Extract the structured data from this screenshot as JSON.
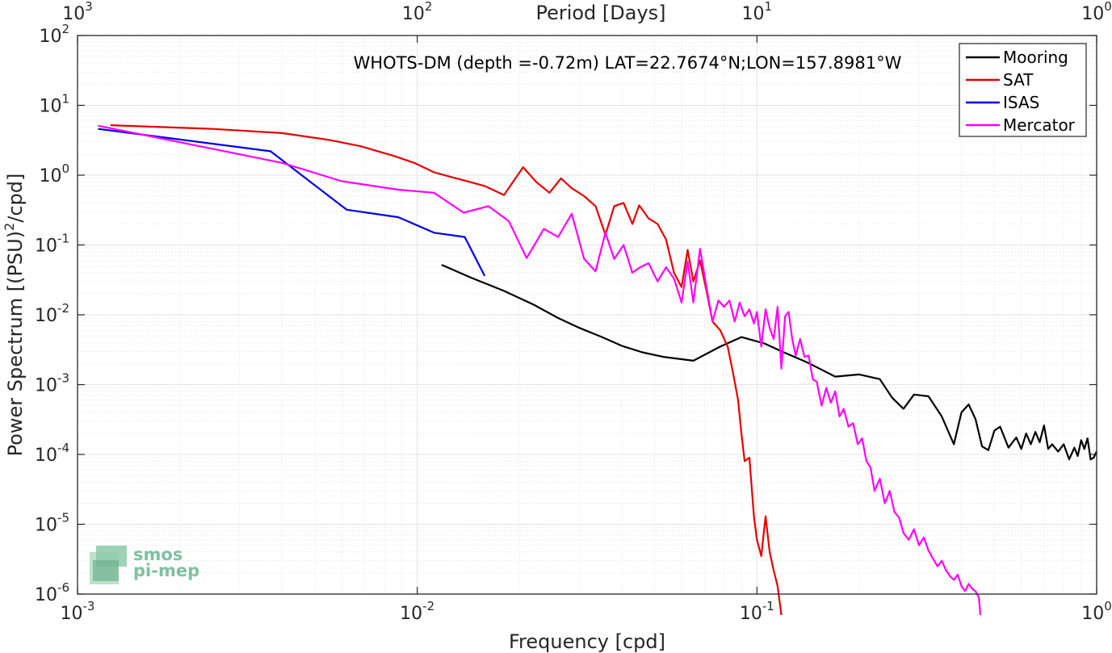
{
  "chart_data": {
    "type": "line",
    "title": "WHOTS-DM (depth =-0.72m) LAT=22.7674°N;LON=157.8981°W",
    "xlabel": "Frequency [cpd]",
    "ylabel": "Power Spectrum [(PSU)",
    "ylabel_sup": "2",
    "ylabel_tail": "/cpd]",
    "x2label": "Period [Days]",
    "x_scale": "log",
    "y_scale": "log",
    "xlim": [
      0.001,
      1
    ],
    "ylim": [
      1e-06,
      100
    ],
    "grid": true,
    "legend_position": "top-right",
    "x_ticks": [
      {
        "value": 0.001,
        "base": "10",
        "exp": "-3"
      },
      {
        "value": 0.01,
        "base": "10",
        "exp": "-2"
      },
      {
        "value": 0.1,
        "base": "10",
        "exp": "-1"
      },
      {
        "value": 1,
        "base": "10",
        "exp": "0"
      }
    ],
    "x2_ticks": [
      {
        "value": 0.001,
        "base": "10",
        "exp": "3"
      },
      {
        "value": 0.01,
        "base": "10",
        "exp": "2"
      },
      {
        "value": 0.1,
        "base": "10",
        "exp": "1"
      },
      {
        "value": 1,
        "base": "10",
        "exp": "0"
      }
    ],
    "y_ticks": [
      {
        "value": 1e-06,
        "base": "10",
        "exp": "-6"
      },
      {
        "value": 1e-05,
        "base": "10",
        "exp": "-5"
      },
      {
        "value": 0.0001,
        "base": "10",
        "exp": "-4"
      },
      {
        "value": 0.001,
        "base": "10",
        "exp": "-3"
      },
      {
        "value": 0.01,
        "base": "10",
        "exp": "-2"
      },
      {
        "value": 0.1,
        "base": "10",
        "exp": "-1"
      },
      {
        "value": 1,
        "base": "10",
        "exp": "0"
      },
      {
        "value": 10,
        "base": "10",
        "exp": "1"
      },
      {
        "value": 100,
        "base": "10",
        "exp": "2"
      }
    ],
    "series": [
      {
        "name": "Mooring",
        "color": "#000000",
        "x": [
          0.0118,
          0.0144,
          0.018,
          0.022,
          0.026,
          0.03,
          0.035,
          0.04,
          0.046,
          0.053,
          0.065,
          0.078,
          0.09,
          0.105,
          0.12,
          0.14,
          0.17,
          0.2,
          0.23,
          0.25,
          0.27,
          0.29,
          0.32,
          0.35,
          0.38,
          0.4,
          0.42,
          0.44,
          0.46,
          0.48,
          0.5,
          0.52,
          0.55,
          0.58,
          0.6,
          0.62,
          0.64,
          0.66,
          0.68,
          0.7,
          0.72,
          0.74,
          0.77,
          0.8,
          0.83,
          0.86,
          0.88,
          0.9,
          0.92,
          0.94,
          0.96,
          0.98,
          1.0
        ],
        "y": [
          0.052,
          0.034,
          0.022,
          0.014,
          0.009,
          0.0065,
          0.0048,
          0.0036,
          0.0029,
          0.0025,
          0.0022,
          0.0035,
          0.0048,
          0.0039,
          0.0029,
          0.0021,
          0.0013,
          0.0014,
          0.0012,
          0.00065,
          0.00045,
          0.00072,
          0.00068,
          0.00035,
          0.00014,
          0.0004,
          0.00052,
          0.00032,
          0.00013,
          0.000115,
          0.00022,
          0.00025,
          0.000125,
          0.000175,
          0.00012,
          0.0002,
          0.00014,
          0.00021,
          0.00015,
          0.00026,
          0.00012,
          0.00014,
          0.00011,
          0.00014,
          8.5e-05,
          0.000125,
          9.5e-05,
          0.00016,
          0.00012,
          0.00017,
          8.5e-05,
          9e-05,
          0.00011
        ]
      },
      {
        "name": "SAT",
        "color": "#e60000",
        "x": [
          0.00125,
          0.0025,
          0.004,
          0.0055,
          0.0068,
          0.0085,
          0.0098,
          0.0112,
          0.0125,
          0.0143,
          0.0158,
          0.018,
          0.0205,
          0.0224,
          0.0245,
          0.0265,
          0.0285,
          0.031,
          0.0335,
          0.0358,
          0.038,
          0.0405,
          0.043,
          0.045,
          0.048,
          0.051,
          0.054,
          0.057,
          0.06,
          0.0625,
          0.065,
          0.068,
          0.071,
          0.074,
          0.078,
          0.082,
          0.085,
          0.088,
          0.09,
          0.092,
          0.095,
          0.098,
          0.1,
          0.103,
          0.106,
          0.109,
          0.112,
          0.115,
          0.118
        ],
        "y": [
          5.2,
          4.6,
          4.0,
          3.2,
          2.6,
          1.9,
          1.5,
          1.1,
          0.95,
          0.8,
          0.7,
          0.52,
          1.3,
          0.8,
          0.56,
          0.9,
          0.65,
          0.5,
          0.36,
          0.14,
          0.36,
          0.4,
          0.2,
          0.37,
          0.24,
          0.2,
          0.12,
          0.04,
          0.025,
          0.085,
          0.03,
          0.06,
          0.022,
          0.008,
          0.006,
          0.0035,
          0.0015,
          0.0006,
          0.0002,
          8e-05,
          9e-05,
          1.3e-05,
          6e-06,
          3.5e-06,
          1.3e-05,
          4e-06,
          2.2e-06,
          1.3e-06,
          5e-07
        ]
      },
      {
        "name": "ISAS",
        "color": "#0000e6",
        "x": [
          0.00115,
          0.0037,
          0.0062,
          0.0088,
          0.0112,
          0.0138,
          0.0158
        ],
        "y": [
          4.6,
          2.2,
          0.32,
          0.25,
          0.15,
          0.13,
          0.036
        ]
      },
      {
        "name": "Mercator",
        "color": "#ff00ff",
        "x": [
          0.00115,
          0.004,
          0.006,
          0.0088,
          0.0112,
          0.0137,
          0.0162,
          0.0186,
          0.021,
          0.0236,
          0.026,
          0.0285,
          0.031,
          0.0335,
          0.0358,
          0.038,
          0.0405,
          0.043,
          0.045,
          0.048,
          0.051,
          0.054,
          0.057,
          0.06,
          0.0625,
          0.065,
          0.068,
          0.071,
          0.074,
          0.077,
          0.08,
          0.083,
          0.086,
          0.089,
          0.092,
          0.095,
          0.098,
          0.1,
          0.103,
          0.106,
          0.109,
          0.112,
          0.115,
          0.118,
          0.121,
          0.124,
          0.127,
          0.13,
          0.134,
          0.138,
          0.142,
          0.146,
          0.15,
          0.155,
          0.16,
          0.165,
          0.17,
          0.175,
          0.18,
          0.186,
          0.192,
          0.198,
          0.204,
          0.21,
          0.216,
          0.222,
          0.23,
          0.238,
          0.246,
          0.254,
          0.262,
          0.27,
          0.28,
          0.29,
          0.3,
          0.31,
          0.32,
          0.33,
          0.34,
          0.35,
          0.36,
          0.37,
          0.38,
          0.39,
          0.4,
          0.41,
          0.42,
          0.43,
          0.44,
          0.45,
          0.455
        ],
        "y": [
          5.1,
          1.5,
          0.82,
          0.62,
          0.56,
          0.29,
          0.36,
          0.22,
          0.065,
          0.17,
          0.13,
          0.28,
          0.063,
          0.042,
          0.15,
          0.063,
          0.1,
          0.04,
          0.047,
          0.055,
          0.03,
          0.048,
          0.033,
          0.015,
          0.058,
          0.015,
          0.088,
          0.025,
          0.008,
          0.016,
          0.013,
          0.016,
          0.008,
          0.015,
          0.0095,
          0.012,
          0.0075,
          0.011,
          0.0035,
          0.012,
          0.0065,
          0.0045,
          0.013,
          0.0017,
          0.0095,
          0.011,
          0.0045,
          0.0026,
          0.0045,
          0.0025,
          0.0026,
          0.0012,
          0.0011,
          0.0005,
          0.0009,
          0.00055,
          0.0008,
          0.00035,
          0.00045,
          0.00025,
          0.00028,
          0.00014,
          0.00017,
          8e-05,
          6.5e-05,
          3e-05,
          4.5e-05,
          2e-05,
          3e-05,
          1.5e-05,
          1.25e-05,
          7.5e-06,
          6e-06,
          8.5e-06,
          5e-06,
          6.5e-06,
          4.2e-06,
          3.2e-06,
          2.5e-06,
          3e-06,
          2.2e-06,
          1.8e-06,
          1.6e-06,
          1.9e-06,
          1.3e-06,
          1.1e-06,
          1.4e-06,
          1.2e-06,
          1.1e-06,
          9e-07,
          5e-07
        ]
      }
    ]
  },
  "logo": {
    "line1": "smos",
    "line2": "pi-mep",
    "color": "#7fc0a0"
  }
}
